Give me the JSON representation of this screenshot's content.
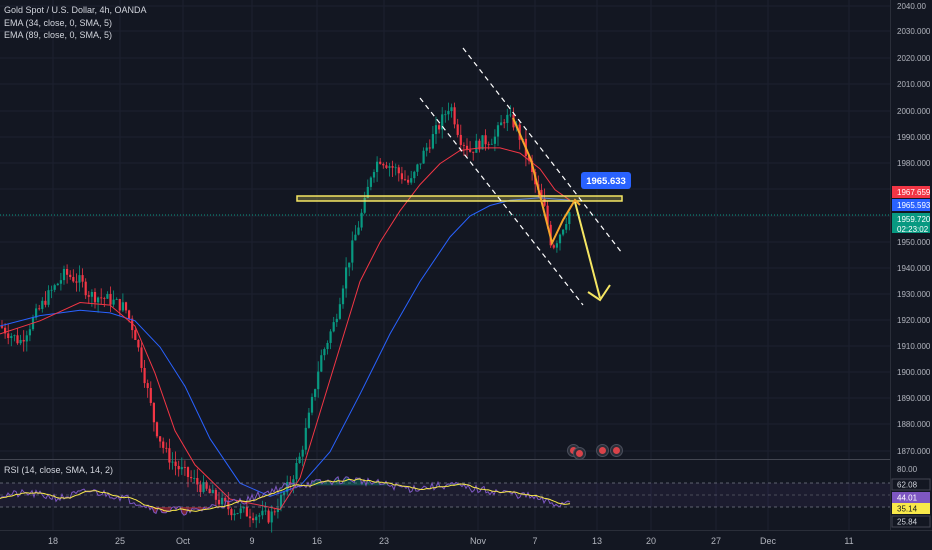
{
  "legend": {
    "symbol": "Gold Spot / U.S. Dollar, 4h, OANDA",
    "ema1": "EMA (34, close, 0, SMA, 5)",
    "ema2": "EMA (89, close, 0, SMA, 5)",
    "rsi": "RSI (14, close, SMA, 14, 2)"
  },
  "price_axis": {
    "ticks": [
      "2040.00",
      "2030.000",
      "2020.000",
      "2010.000",
      "2000.000",
      "1990.000",
      "1980.000",
      "1970.000",
      "1960.000",
      "1950.000",
      "1940.000",
      "1930.000",
      "1920.000",
      "1910.000",
      "1900.000",
      "1890.000",
      "1880.000",
      "1870.000"
    ],
    "labels": [
      {
        "text": "1967.659",
        "color": "#f23645"
      },
      {
        "text": "1965.593",
        "color": "#2962ff"
      },
      {
        "text": "1959.720",
        "color": "#089981"
      },
      {
        "text": "02:23:02",
        "color": "#089981"
      }
    ]
  },
  "rsi_axis": {
    "ticks": [
      "80.00"
    ],
    "labels": [
      {
        "text": "62.08",
        "color": "#ffffff"
      },
      {
        "text": "44.01",
        "color": "#7e57c2"
      },
      {
        "text": "35.14",
        "color": "#f9e94a"
      },
      {
        "text": "25.84",
        "color": "#ffffff"
      }
    ]
  },
  "time_axis": [
    "18",
    "25",
    "Oct",
    "9",
    "16",
    "23",
    "Nov",
    "7",
    "13",
    "20",
    "27",
    "Dec",
    "11"
  ],
  "callout": {
    "text": "1965.633"
  },
  "colors": {
    "up": "#089981",
    "down": "#f23645",
    "ema34": "#f23645",
    "ema89": "#2962ff",
    "rsi": "#7e57c2",
    "rsi_ma": "#f9e94a",
    "zone": "#f5e663"
  }
}
